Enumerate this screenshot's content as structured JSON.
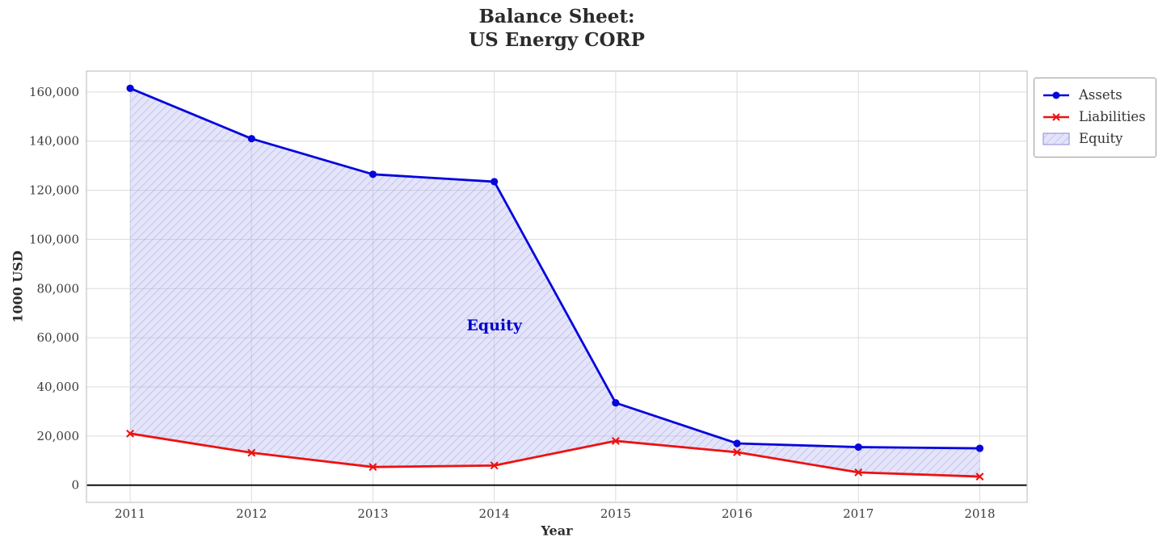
{
  "title": "Balance Sheet:\nUS Energy CORP",
  "chart_data": {
    "type": "line",
    "title": "Balance Sheet: US Energy CORP",
    "xlabel": "Year",
    "ylabel": "1000 USD",
    "x": [
      2011,
      2012,
      2013,
      2014,
      2015,
      2016,
      2017,
      2018
    ],
    "series": [
      {
        "name": "Assets",
        "color": "#0505dd",
        "marker": "circle",
        "values": [
          161500,
          141000,
          126500,
          123500,
          33500,
          17000,
          15500,
          15000
        ]
      },
      {
        "name": "Liabilities",
        "color": "#ee1111",
        "marker": "x",
        "values": [
          21000,
          13200,
          7400,
          8000,
          18000,
          13400,
          5200,
          3500
        ]
      }
    ],
    "fill_between": {
      "label": "Equity",
      "fill_color": "#aaaaee",
      "hatch_color": "#8888dd",
      "hatch": "///"
    },
    "annotation": {
      "text": "Equity",
      "x": 2014.0,
      "y": 65000,
      "color": "#0000cc"
    },
    "xticks": [
      2011,
      2012,
      2013,
      2014,
      2015,
      2016,
      2017,
      2018
    ],
    "xtick_labels": [
      "2011",
      "2012",
      "2013",
      "2014",
      "2015",
      "2016",
      "2017",
      "2018"
    ],
    "yticks": [
      0,
      20000,
      40000,
      60000,
      80000,
      100000,
      120000,
      140000,
      160000
    ],
    "ytick_labels": [
      "0",
      "20,000",
      "40,000",
      "60,000",
      "80,000",
      "100,000",
      "120,000",
      "140,000",
      "160,000"
    ],
    "xlim": [
      2010.64,
      2018.39
    ],
    "ylim": [
      -7000,
      168500
    ],
    "grid": true,
    "zero_line": true,
    "legend_position": "outside-top-right"
  }
}
